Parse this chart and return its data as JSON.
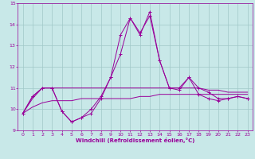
{
  "xlabel": "Windchill (Refroidissement éolien,°C)",
  "ylabel": "",
  "xlim": [
    -0.5,
    23.5
  ],
  "ylim": [
    9,
    15
  ],
  "yticks": [
    9,
    10,
    11,
    12,
    13,
    14,
    15
  ],
  "xticks": [
    0,
    1,
    2,
    3,
    4,
    5,
    6,
    7,
    8,
    9,
    10,
    11,
    12,
    13,
    14,
    15,
    16,
    17,
    18,
    19,
    20,
    21,
    22,
    23
  ],
  "bg_color": "#c8e8e8",
  "line_color": "#990099",
  "grid_color": "#a0c8c8",
  "series1_x": [
    0,
    1,
    2,
    3,
    4,
    5,
    6,
    7,
    8,
    9,
    10,
    11,
    12,
    13,
    14,
    15,
    16,
    17,
    18,
    19,
    20,
    21,
    22,
    23
  ],
  "series1_y": [
    9.8,
    10.6,
    11.0,
    11.0,
    9.9,
    9.4,
    9.6,
    10.0,
    10.6,
    11.5,
    13.5,
    14.3,
    13.5,
    14.6,
    12.3,
    11.0,
    11.0,
    11.5,
    11.0,
    10.8,
    10.5,
    10.5,
    10.6,
    10.5
  ],
  "series2_x": [
    0,
    1,
    2,
    3,
    4,
    5,
    6,
    7,
    8,
    9,
    10,
    11,
    12,
    13,
    14,
    15,
    16,
    17,
    18,
    19,
    20,
    21,
    22,
    23
  ],
  "series2_y": [
    9.8,
    10.6,
    11.0,
    11.0,
    9.9,
    9.4,
    9.6,
    9.8,
    10.5,
    11.5,
    12.6,
    14.3,
    13.6,
    14.4,
    12.3,
    11.0,
    10.9,
    11.5,
    10.7,
    10.5,
    10.4,
    10.5,
    10.6,
    10.5
  ],
  "line1_x": [
    0,
    1,
    2,
    3,
    4,
    5,
    6,
    7,
    8,
    9,
    10,
    11,
    12,
    13,
    14,
    15,
    16,
    17,
    18,
    19,
    20,
    21,
    22,
    23
  ],
  "line1_y": [
    9.8,
    10.5,
    11.0,
    11.0,
    11.0,
    11.0,
    11.0,
    11.0,
    11.0,
    11.0,
    11.0,
    11.0,
    11.0,
    11.0,
    11.0,
    11.0,
    11.0,
    11.0,
    11.0,
    10.9,
    10.9,
    10.8,
    10.8,
    10.8
  ],
  "line2_x": [
    0,
    1,
    2,
    3,
    4,
    5,
    6,
    7,
    8,
    9,
    10,
    11,
    12,
    13,
    14,
    15,
    16,
    17,
    18,
    19,
    20,
    21,
    22,
    23
  ],
  "line2_y": [
    9.8,
    10.1,
    10.3,
    10.4,
    10.4,
    10.4,
    10.5,
    10.5,
    10.5,
    10.5,
    10.5,
    10.5,
    10.6,
    10.6,
    10.7,
    10.7,
    10.7,
    10.7,
    10.7,
    10.7,
    10.7,
    10.7,
    10.7,
    10.7
  ]
}
